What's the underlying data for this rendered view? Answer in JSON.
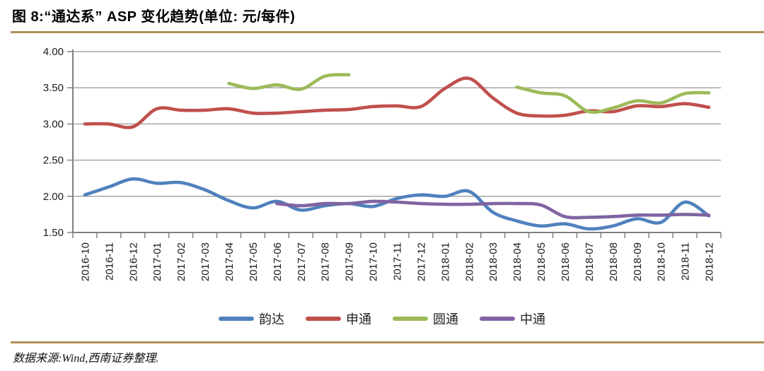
{
  "title": "图 8:“通达系” ASP 变化趋势(单位: 元/每件)",
  "footer": {
    "source_text": "数据来源:Wind,西南证券整理."
  },
  "colors": {
    "divider": "#b2905b",
    "axis": "#808080",
    "gridline": "#a6a6a6",
    "tick_label": "#1a1a1a"
  },
  "chart_data": {
    "type": "line",
    "title": "“通达系” ASP 变化趋势",
    "unit": "元/每件",
    "smooth": true,
    "grid": true,
    "legend_position": "bottom",
    "ylim": [
      1.5,
      4.0
    ],
    "ytick_values": [
      4.0,
      3.5,
      3.0,
      2.5,
      2.0,
      1.5
    ],
    "ytick_labels": [
      "4.00",
      "3.50",
      "3.00",
      "2.50",
      "2.00",
      "1.50"
    ],
    "categories": [
      "2016-10",
      "2016-11",
      "2016-12",
      "2017-01",
      "2017-02",
      "2017-03",
      "2017-04",
      "2017-05",
      "2017-06",
      "2017-07",
      "2017-08",
      "2017-09",
      "2017-10",
      "2017-11",
      "2017-12",
      "2018-01",
      "2018-02",
      "2018-03",
      "2018-04",
      "2018-05",
      "2018-06",
      "2018-07",
      "2018-08",
      "2018-09",
      "2018-10",
      "2018-11",
      "2018-12"
    ],
    "series": [
      {
        "id": "yunda",
        "name": "韵达",
        "color": "#4f81bd",
        "values": [
          2.02,
          2.13,
          2.24,
          2.18,
          2.19,
          2.09,
          1.94,
          1.84,
          1.93,
          1.81,
          1.87,
          1.9,
          1.86,
          1.97,
          2.02,
          2.0,
          2.07,
          1.78,
          1.66,
          1.59,
          1.62,
          1.55,
          1.59,
          1.69,
          1.64,
          1.92,
          1.73
        ]
      },
      {
        "id": "shentong",
        "name": "申通",
        "color": "#c0504d",
        "values": [
          3.0,
          3.0,
          2.96,
          3.21,
          3.19,
          3.19,
          3.21,
          3.15,
          3.15,
          3.17,
          3.19,
          3.2,
          3.24,
          3.25,
          3.24,
          3.49,
          3.63,
          3.36,
          3.15,
          3.11,
          3.12,
          3.18,
          3.17,
          3.25,
          3.24,
          3.28,
          3.23
        ]
      },
      {
        "id": "yuantong",
        "name": "圆通",
        "color": "#9bbb59",
        "values": [
          null,
          null,
          null,
          null,
          null,
          null,
          3.56,
          3.49,
          3.54,
          3.48,
          3.66,
          3.68,
          null,
          null,
          null,
          null,
          null,
          null,
          3.51,
          3.43,
          3.39,
          3.17,
          3.22,
          3.32,
          3.29,
          3.42,
          3.43
        ]
      },
      {
        "id": "zhongtong",
        "name": "中通",
        "color": "#8064a2",
        "values": [
          null,
          null,
          null,
          null,
          null,
          null,
          null,
          null,
          1.9,
          1.87,
          1.9,
          1.9,
          1.93,
          1.92,
          1.9,
          1.89,
          1.89,
          1.9,
          1.9,
          1.88,
          1.72,
          1.71,
          1.72,
          1.74,
          1.74,
          1.75,
          1.74
        ]
      }
    ]
  }
}
